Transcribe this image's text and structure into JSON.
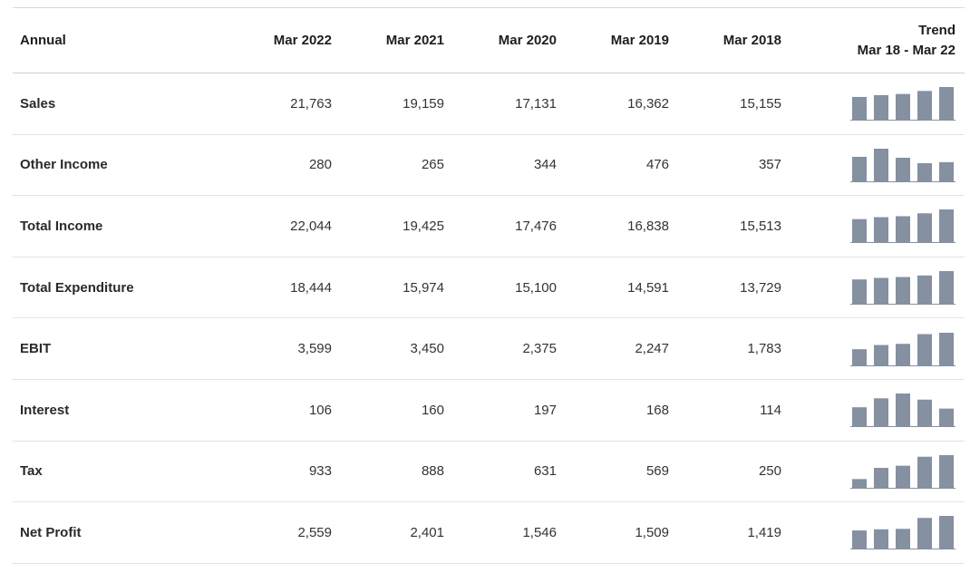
{
  "header": {
    "label": "Annual",
    "years": [
      "Mar 2022",
      "Mar 2021",
      "Mar 2020",
      "Mar 2019",
      "Mar 2018"
    ],
    "trend_title": "Trend",
    "trend_range": "Mar 18 - Mar 22"
  },
  "rows": [
    {
      "label": "Sales",
      "values": [
        "21,763",
        "19,159",
        "17,131",
        "16,362",
        "15,155"
      ]
    },
    {
      "label": "Other Income",
      "values": [
        "280",
        "265",
        "344",
        "476",
        "357"
      ]
    },
    {
      "label": "Total Income",
      "values": [
        "22,044",
        "19,425",
        "17,476",
        "16,838",
        "15,513"
      ]
    },
    {
      "label": "Total Expenditure",
      "values": [
        "18,444",
        "15,974",
        "15,100",
        "14,591",
        "13,729"
      ]
    },
    {
      "label": "EBIT",
      "values": [
        "3,599",
        "3,450",
        "2,375",
        "2,247",
        "1,783"
      ]
    },
    {
      "label": "Interest",
      "values": [
        "106",
        "160",
        "197",
        "168",
        "114"
      ]
    },
    {
      "label": "Tax",
      "values": [
        "933",
        "888",
        "631",
        "569",
        "250"
      ]
    },
    {
      "label": "Net Profit",
      "values": [
        "2,559",
        "2,401",
        "1,546",
        "1,509",
        "1,419"
      ]
    }
  ],
  "colors": {
    "sparkline_bar": "#8590a0"
  }
}
